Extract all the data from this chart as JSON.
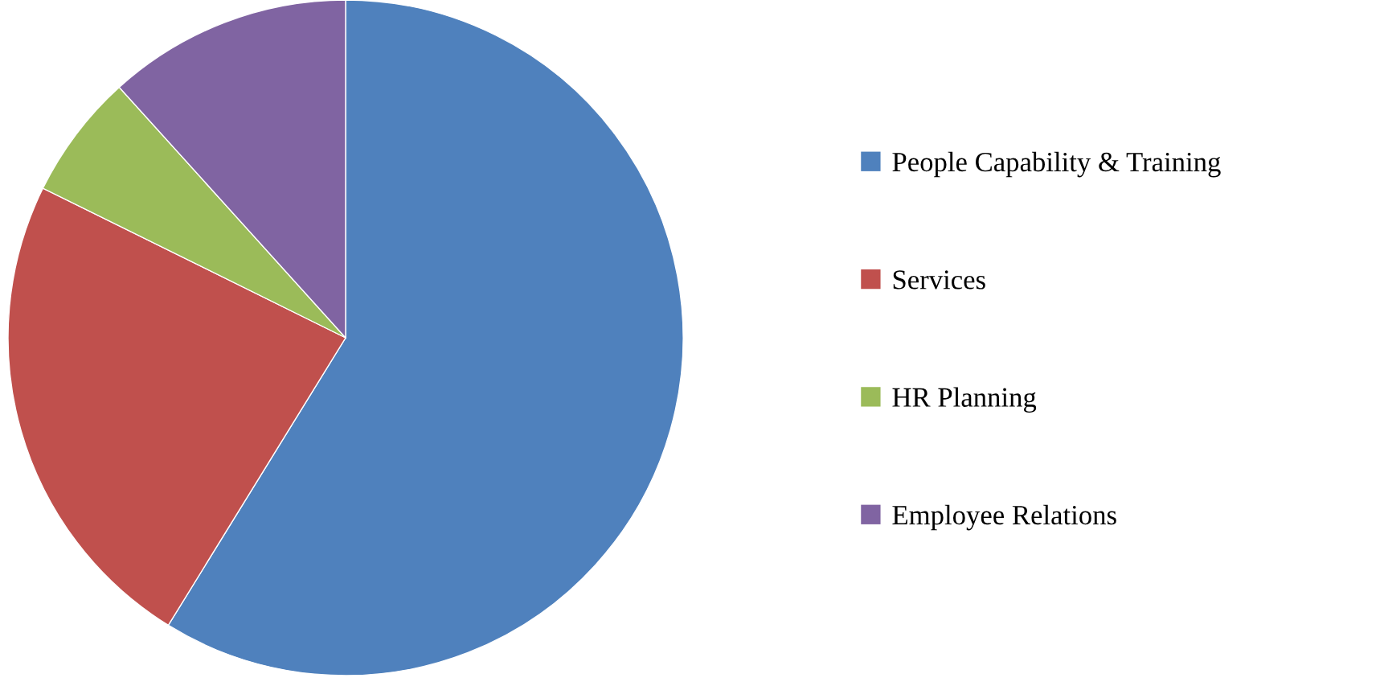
{
  "chart_data": {
    "type": "pie",
    "categories": [
      "People Capability & Training",
      "Services",
      "HR Planning",
      "Employee Relations"
    ],
    "values": [
      58.8,
      23.5,
      6.0,
      11.7
    ],
    "colors": [
      "#4f81bd",
      "#c0504d",
      "#9bbb59",
      "#8064a2"
    ],
    "legend": "right"
  }
}
